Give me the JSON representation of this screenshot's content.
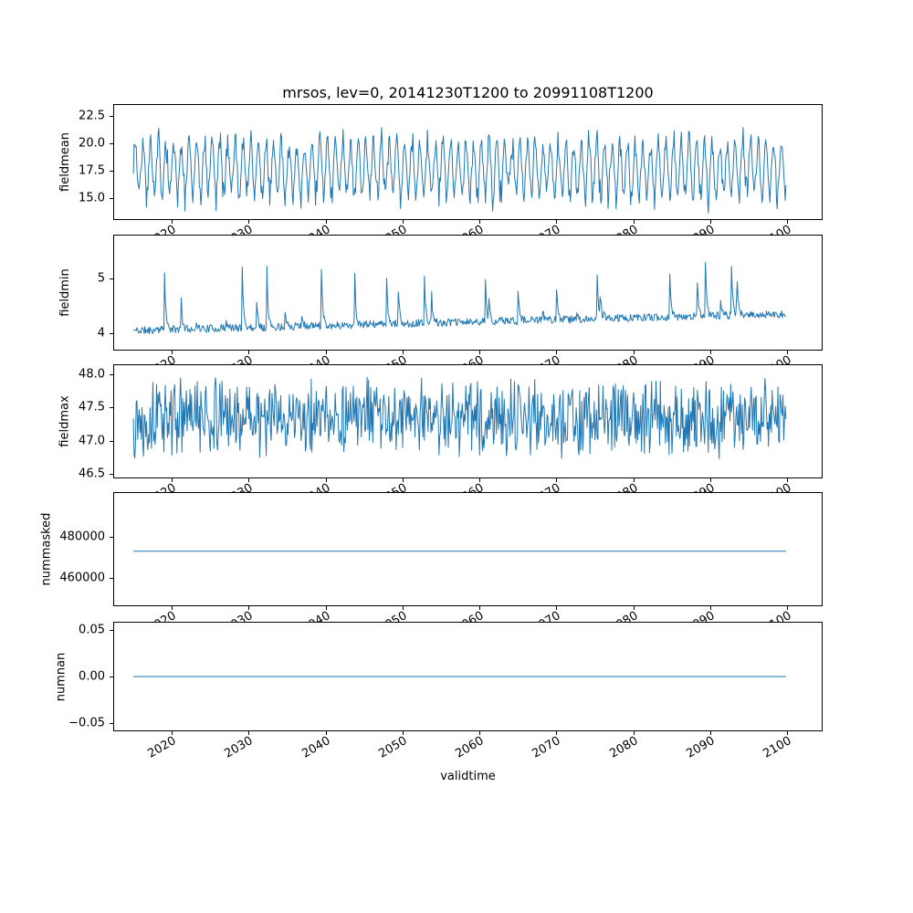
{
  "figure": {
    "title": "mrsos, lev=0, 20141230T1200 to 20991108T1200",
    "xlabel": "validtime",
    "line_color": "#1f77b4",
    "axes_color": "#000000",
    "xlim": [
      2012.5,
      2104.5
    ],
    "xticks": [
      {
        "value": 2020,
        "label": "2020"
      },
      {
        "value": 2030,
        "label": "2030"
      },
      {
        "value": 2040,
        "label": "2040"
      },
      {
        "value": 2050,
        "label": "2050"
      },
      {
        "value": 2060,
        "label": "2060"
      },
      {
        "value": 2070,
        "label": "2070"
      },
      {
        "value": 2080,
        "label": "2080"
      },
      {
        "value": 2090,
        "label": "2090"
      },
      {
        "value": 2100,
        "label": "2100"
      }
    ]
  },
  "chart_data": [
    {
      "type": "line",
      "ylabel": "fieldmean",
      "ylim": [
        13.08,
        23.5
      ],
      "yticks": [
        {
          "value": 22.5,
          "label": "22.5"
        },
        {
          "value": 20.0,
          "label": "20.0"
        },
        {
          "value": 17.5,
          "label": "17.5"
        },
        {
          "value": 15.0,
          "label": "15.0"
        }
      ],
      "series": {
        "name": "fieldmean",
        "kind": "seasonal",
        "points": 900,
        "seed": 7,
        "t0": 2015.0,
        "t1": 2099.85,
        "base": 17.7,
        "season_amp": 2.4,
        "amp_jitter": 1.2,
        "noise": 0.55,
        "approx_min": 13.9,
        "approx_max": 22.5
      }
    },
    {
      "type": "line",
      "ylabel": "fieldmin",
      "ylim": [
        3.7,
        5.78
      ],
      "yticks": [
        {
          "value": 5,
          "label": "5"
        },
        {
          "value": 4,
          "label": "4"
        }
      ],
      "series": {
        "name": "fieldmin",
        "kind": "spiky",
        "points": 900,
        "seed": 11,
        "t0": 2015.0,
        "t1": 2099.85,
        "base": 4.05,
        "trend": 0.3,
        "noise": 0.07,
        "spike_prob": 0.03,
        "spike_max": 2.2,
        "spike_decay": 0.55,
        "approx_min": 3.85,
        "approx_max": 5.75
      }
    },
    {
      "type": "line",
      "ylabel": "fieldmax",
      "ylim": [
        46.44,
        48.14
      ],
      "yticks": [
        {
          "value": 48.0,
          "label": "48.0"
        },
        {
          "value": 47.5,
          "label": "47.5"
        },
        {
          "value": 47.0,
          "label": "47.0"
        },
        {
          "value": 46.5,
          "label": "46.5"
        }
      ],
      "series": {
        "name": "fieldmax",
        "kind": "noisy",
        "points": 900,
        "seed": 13,
        "t0": 2015.0,
        "t1": 2099.85,
        "base": 47.35,
        "noise1": 0.8,
        "noise2": 0.5,
        "approx_min": 46.45,
        "approx_max": 48.1
      }
    },
    {
      "type": "line",
      "ylabel": "nummasked",
      "ylim": [
        447000,
        501000
      ],
      "yticks": [
        {
          "value": 480000,
          "label": "480000"
        },
        {
          "value": 460000,
          "label": "460000"
        }
      ],
      "series": {
        "name": "nummasked",
        "kind": "constant",
        "value": 473000,
        "t0": 2015.0,
        "t1": 2099.85
      }
    },
    {
      "type": "line",
      "ylabel": "numnan",
      "ylim": [
        -0.058,
        0.058
      ],
      "yticks": [
        {
          "value": 0.05,
          "label": "0.05"
        },
        {
          "value": 0.0,
          "label": "0.00"
        },
        {
          "value": -0.05,
          "label": "−0.05"
        }
      ],
      "series": {
        "name": "numnan",
        "kind": "constant",
        "value": 0,
        "t0": 2015.0,
        "t1": 2099.85
      }
    }
  ]
}
